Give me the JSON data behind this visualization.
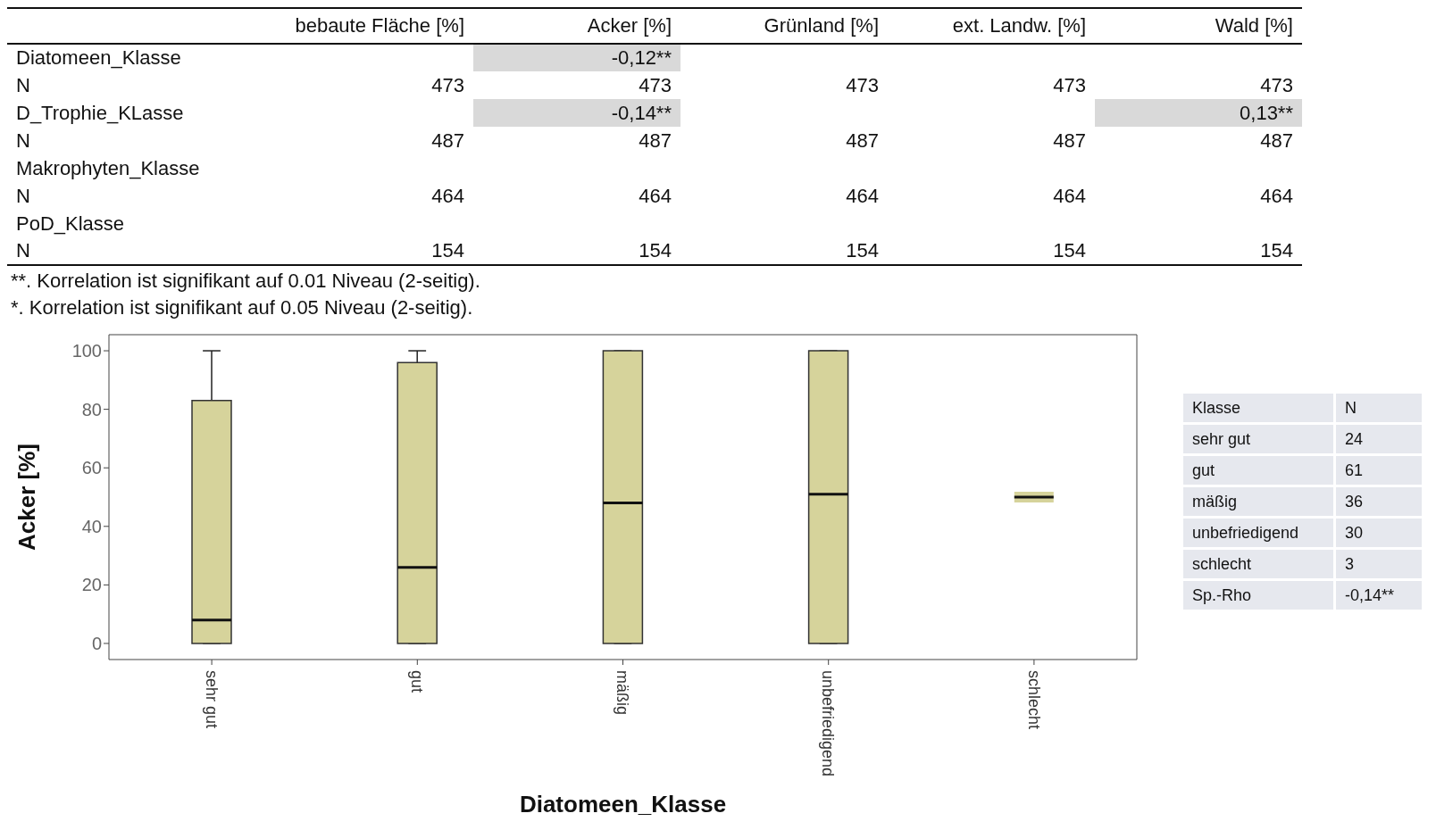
{
  "chart_data": [
    {
      "type": "other",
      "categories": [
        "bebaute Fläche [%]",
        "Acker [%]",
        "Grünland [%]",
        "ext. Landw. [%]",
        "Wald [%]"
      ],
      "y_categories": [
        "Diatomeen_Klasse",
        "N",
        "D_Trophie_KLasse",
        "N",
        "Makrophyten_Klasse",
        "N",
        "PoD_Klasse",
        "N"
      ],
      "cell_labels": [
        [
          null,
          "-0,12**",
          null,
          null,
          null
        ],
        [
          "473",
          "473",
          "473",
          "473",
          "473"
        ],
        [
          null,
          "-0,14**",
          null,
          null,
          "0,13**"
        ],
        [
          "487",
          "487",
          "487",
          "487",
          "487"
        ],
        [
          null,
          null,
          null,
          null,
          null
        ],
        [
          "464",
          "464",
          "464",
          "464",
          "464"
        ],
        [
          null,
          null,
          null,
          null,
          null
        ],
        [
          "154",
          "154",
          "154",
          "154",
          "154"
        ]
      ],
      "colors": [
        [
          null,
          "#d9d9d9",
          null,
          null,
          null
        ],
        [
          null,
          null,
          null,
          null,
          null
        ],
        [
          null,
          "#d9d9d9",
          null,
          null,
          "#d9d9d9"
        ],
        [
          null,
          null,
          null,
          null,
          null
        ],
        [
          null,
          null,
          null,
          null,
          null
        ],
        [
          null,
          null,
          null,
          null,
          null
        ],
        [
          null,
          null,
          null,
          null,
          null
        ],
        [
          null,
          null,
          null,
          null,
          null
        ]
      ],
      "annotations": [
        "**. Korrelation ist signifikant auf 0.01 Niveau (2-seitig).",
        "*. Korrelation ist signifikant auf 0.05 Niveau (2-seitig)."
      ]
    },
    {
      "type": "box",
      "categories": [
        "sehr gut",
        "gut",
        "mäßig",
        "unbefriedigend",
        "schlecht"
      ],
      "boxes": [
        {
          "low": 0,
          "q1": 0,
          "median": 8,
          "q3": 83,
          "high": 100
        },
        {
          "low": 0,
          "q1": 0,
          "median": 26,
          "q3": 96,
          "high": 100
        },
        {
          "low": 0,
          "q1": 0,
          "median": 48,
          "q3": 100,
          "high": 100
        },
        {
          "low": 0,
          "q1": 0,
          "median": 51,
          "q3": 100,
          "high": 100
        },
        {
          "low": 50,
          "q1": 50,
          "median": 50,
          "q3": 50,
          "high": 50
        }
      ],
      "color": "#d6d39b",
      "xlabel": "Diatomeen_Klasse",
      "ylabel": "Acker [%]",
      "ylim": [
        -5.5,
        105.5
      ],
      "yticks": [
        0,
        20,
        40,
        60,
        80,
        100
      ]
    },
    {
      "type": "other",
      "ylabel": "Klasse",
      "categories": [
        "N"
      ],
      "y_categories": [
        "sehr gut",
        "gut",
        "mäßig",
        "unbefriedigend",
        "schlecht",
        "Sp.-Rho"
      ],
      "cell_labels": [
        [
          "24"
        ],
        [
          "61"
        ],
        [
          "36"
        ],
        [
          "30"
        ],
        [
          "3"
        ],
        [
          "-0,14**"
        ]
      ],
      "color": "#e6e8ee"
    }
  ]
}
